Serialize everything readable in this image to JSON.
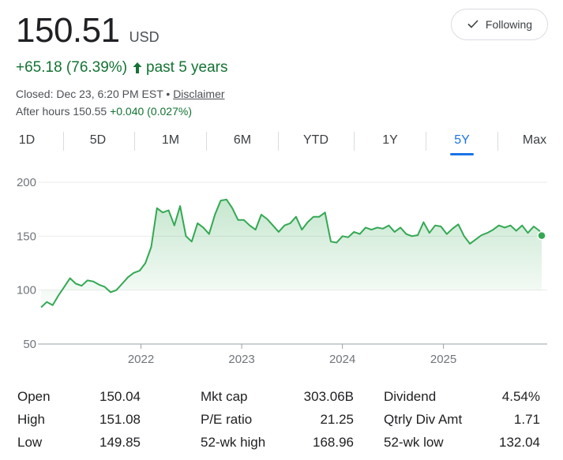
{
  "quote": {
    "price": "150.51",
    "currency": "USD",
    "change": "+65.18 (76.39%)",
    "change_period": "past 5 years",
    "closed_text": "Closed: Dec 23, 6:20 PM EST •",
    "disclaimer": "Disclaimer",
    "after_hours_label": "After hours 150.55",
    "after_hours_change": "+0.040 (0.027%)"
  },
  "follow_button": {
    "label": "Following",
    "icon": "check-icon"
  },
  "tabs": [
    {
      "label": "1D",
      "active": false
    },
    {
      "label": "5D",
      "active": false
    },
    {
      "label": "1M",
      "active": false
    },
    {
      "label": "6M",
      "active": false
    },
    {
      "label": "YTD",
      "active": false
    },
    {
      "label": "1Y",
      "active": false
    },
    {
      "label": "5Y",
      "active": true
    },
    {
      "label": "Max",
      "active": false
    }
  ],
  "colors": {
    "up": "#137333",
    "line": "#34a853",
    "accent": "#1a73e8"
  },
  "chart_data": {
    "type": "area",
    "xlabel": "",
    "ylabel": "",
    "ylim": [
      50,
      200
    ],
    "y_ticks": [
      "200",
      "150",
      "100",
      "50"
    ],
    "x_ticks": [
      "2022",
      "2023",
      "2024",
      "2025"
    ],
    "grid": true,
    "series": [
      {
        "x": [
          "2021-01-04",
          "2021-01-25",
          "2021-02-15",
          "2021-03-08",
          "2021-03-29",
          "2021-04-19",
          "2021-05-10",
          "2021-05-31",
          "2021-06-21",
          "2021-07-12",
          "2021-08-02",
          "2021-08-23",
          "2021-09-13",
          "2021-10-04",
          "2021-10-25",
          "2021-11-15",
          "2021-12-06",
          "2021-12-27",
          "2022-01-17",
          "2022-02-07",
          "2022-02-28",
          "2022-03-21",
          "2022-04-11",
          "2022-05-02",
          "2022-05-23",
          "2022-06-13",
          "2022-07-04",
          "2022-07-25",
          "2022-08-15",
          "2022-09-05",
          "2022-09-26",
          "2022-10-17",
          "2022-11-07",
          "2022-11-28",
          "2022-12-19",
          "2023-01-09",
          "2023-01-30",
          "2023-02-20",
          "2023-03-13",
          "2023-04-03",
          "2023-04-24",
          "2023-05-15",
          "2023-06-05",
          "2023-06-26",
          "2023-07-17",
          "2023-08-07",
          "2023-08-28",
          "2023-09-18",
          "2023-10-09",
          "2023-10-30",
          "2023-11-20",
          "2023-12-11",
          "2024-01-01",
          "2024-01-22",
          "2024-02-12",
          "2024-03-04",
          "2024-03-25",
          "2024-04-15",
          "2024-05-06",
          "2024-05-27",
          "2024-06-17",
          "2024-07-08",
          "2024-07-29",
          "2024-08-19",
          "2024-09-09",
          "2024-09-30",
          "2024-10-21",
          "2024-11-11",
          "2024-12-02",
          "2024-12-23",
          "2025-01-13",
          "2025-02-03",
          "2025-02-24",
          "2025-03-17",
          "2025-04-07",
          "2025-04-28",
          "2025-05-19",
          "2025-06-09",
          "2025-06-30",
          "2025-07-21",
          "2025-08-11",
          "2025-09-01",
          "2025-09-22",
          "2025-10-13",
          "2025-11-03",
          "2025-11-24",
          "2025-12-15",
          "2025-12-23"
        ],
        "y": [
          84,
          89,
          86,
          95,
          103,
          111,
          106,
          104,
          109,
          108,
          105,
          103,
          98,
          100,
          106,
          112,
          116,
          118,
          125,
          140,
          176,
          172,
          174,
          160,
          178,
          150,
          145,
          162,
          158,
          152,
          170,
          183,
          184,
          176,
          165,
          165,
          160,
          156,
          170,
          166,
          160,
          154,
          160,
          162,
          168,
          156,
          163,
          168,
          168,
          172,
          145,
          144,
          150,
          149,
          154,
          152,
          158,
          156,
          158,
          157,
          160,
          154,
          158,
          152,
          150,
          151,
          163,
          153,
          160,
          159,
          152,
          157,
          161,
          150,
          143,
          147,
          151,
          153,
          156,
          160,
          158,
          160,
          155,
          160,
          153,
          159,
          155,
          150.51
        ]
      }
    ]
  },
  "stats": [
    {
      "label": "Open",
      "value": "150.04"
    },
    {
      "label": "High",
      "value": "151.08"
    },
    {
      "label": "Low",
      "value": "149.85"
    },
    {
      "label": "Mkt cap",
      "value": "303.06B"
    },
    {
      "label": "P/E ratio",
      "value": "21.25"
    },
    {
      "label": "52-wk high",
      "value": "168.96"
    },
    {
      "label": "Dividend",
      "value": "4.54%"
    },
    {
      "label": "Qtrly Div Amt",
      "value": "1.71"
    },
    {
      "label": "52-wk low",
      "value": "132.04"
    }
  ]
}
